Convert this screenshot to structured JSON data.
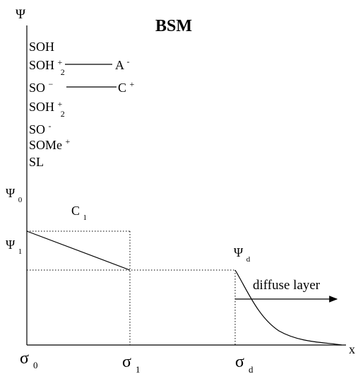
{
  "title": "BSM",
  "axes": {
    "y_label": "Ψ",
    "x_label": "x"
  },
  "species": [
    {
      "base": "SOH"
    },
    {
      "base": "SOH",
      "sup": "+",
      "sub": "2",
      "partner": {
        "base": "A",
        "sup": "-"
      }
    },
    {
      "base": "SO",
      "sup": "−",
      "partner": {
        "base": "C",
        "sup": "+"
      }
    },
    {
      "base": "SOH",
      "sup": "+",
      "sub": "2"
    },
    {
      "base": "SO",
      "sup": "-"
    },
    {
      "base": "SOMe",
      "sup": "+"
    },
    {
      "base": "SL"
    }
  ],
  "potentials": {
    "psi0": {
      "base": "Ψ",
      "sub": "0"
    },
    "psi1": {
      "base": "Ψ",
      "sub": "1"
    },
    "psid": {
      "base": "Ψ",
      "sub": "d"
    }
  },
  "capacitance": {
    "base": "C",
    "sub": "1"
  },
  "planes": [
    {
      "base": "σ",
      "sub": "0"
    },
    {
      "base": "σ",
      "sub": "1"
    },
    {
      "base": "σ",
      "sub": "d"
    }
  ],
  "diffuse_label": "diffuse layer"
}
